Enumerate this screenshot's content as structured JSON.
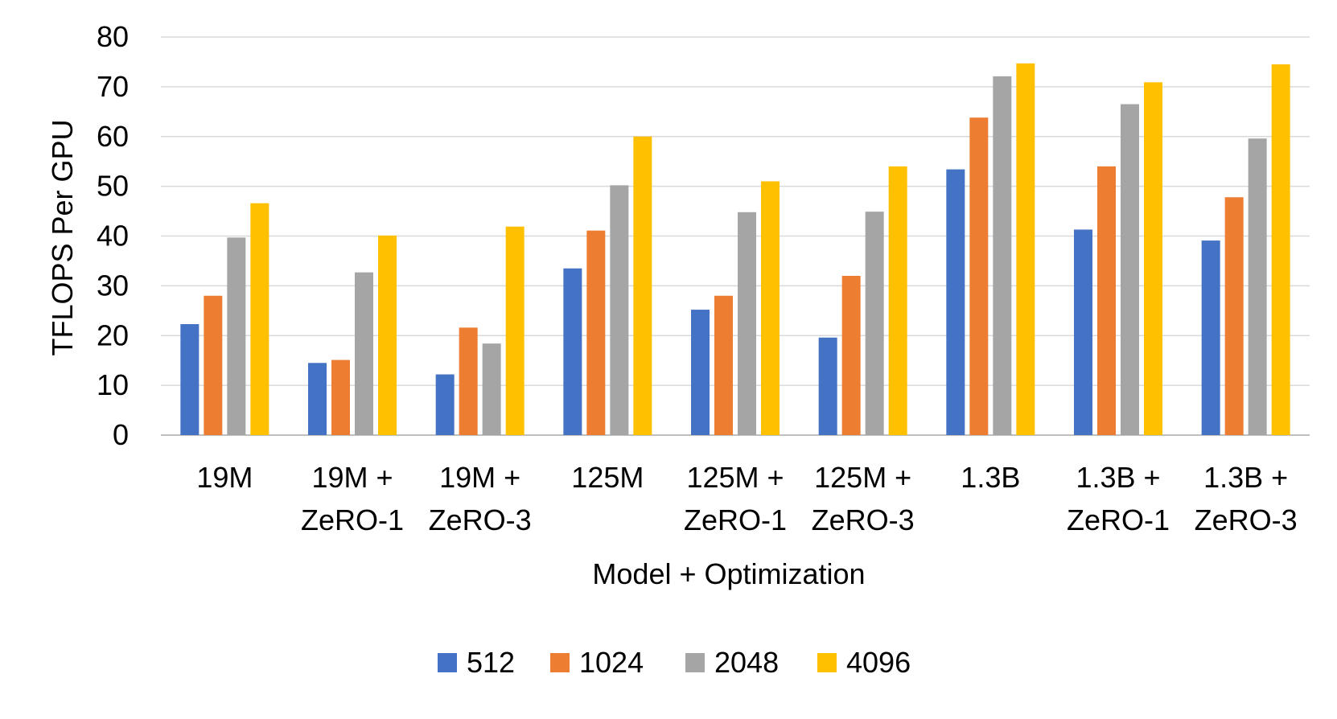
{
  "chart_data": {
    "type": "bar",
    "title": "",
    "xlabel": "Model + Optimization",
    "ylabel": "TFLOPS Per GPU",
    "ylim": [
      0,
      80
    ],
    "yticks": [
      0,
      10,
      20,
      30,
      40,
      50,
      60,
      70,
      80
    ],
    "grid": true,
    "legend_position": "bottom",
    "categories": [
      [
        "19M"
      ],
      [
        "19M +",
        "ZeRO-1"
      ],
      [
        "19M +",
        "ZeRO-3"
      ],
      [
        "125M"
      ],
      [
        "125M +",
        "ZeRO-1"
      ],
      [
        "125M +",
        "ZeRO-3"
      ],
      [
        "1.3B"
      ],
      [
        "1.3B +",
        "ZeRO-1"
      ],
      [
        "1.3B +",
        "ZeRO-3"
      ]
    ],
    "series": [
      {
        "name": "512",
        "color": "#4472C4",
        "values": [
          22.3,
          14.5,
          12.2,
          33.5,
          25.2,
          19.6,
          53.4,
          41.3,
          39.1
        ]
      },
      {
        "name": "1024",
        "color": "#ED7D31",
        "values": [
          28.0,
          15.1,
          21.6,
          41.1,
          28.0,
          32.0,
          63.8,
          54.0,
          47.8
        ]
      },
      {
        "name": "2048",
        "color": "#A5A5A5",
        "values": [
          39.7,
          32.7,
          18.4,
          50.2,
          44.8,
          44.9,
          72.1,
          66.5,
          59.6
        ]
      },
      {
        "name": "4096",
        "color": "#FFC000",
        "values": [
          46.6,
          40.1,
          41.9,
          60.0,
          51.0,
          54.0,
          74.7,
          70.9,
          74.5
        ]
      }
    ]
  }
}
